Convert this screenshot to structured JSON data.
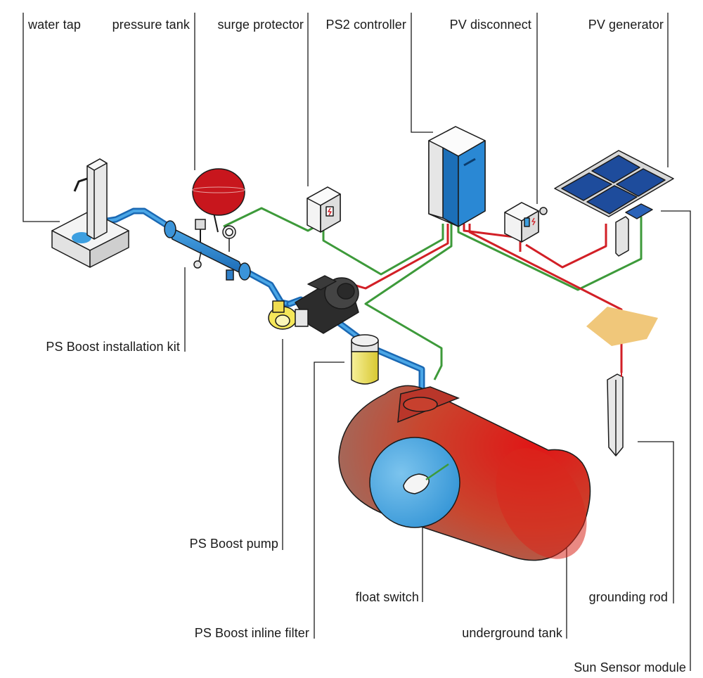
{
  "labels": {
    "water_tap": "water tap",
    "pressure_tank": "pressure tank",
    "surge_protector": "surge protector",
    "ps2_controller": "PS2 controller",
    "pv_disconnect": "PV disconnect",
    "pv_generator": "PV generator",
    "ps_boost_installation_kit": "PS Boost installation kit",
    "ps_boost_pump": "PS Boost pump",
    "ps_boost_inline_filter": "PS Boost inline filter",
    "float_switch": "float switch",
    "underground_tank": "underground tank",
    "grounding_rod": "grounding rod",
    "sun_sensor_module": "Sun Sensor module"
  },
  "colors": {
    "water_pipe": "#1f7fc8",
    "power_cable_red": "#d21f26",
    "signal_cable_green": "#3d9a3a",
    "tank_red": "#d63a2a",
    "tank_face_blue": "#3a9fdc",
    "controller_blue": "#1c6fb8",
    "solar_panel": "#1e4c9c",
    "filter_yellow": "#efe35a",
    "sun_sensor_pad": "#f0c77a"
  }
}
